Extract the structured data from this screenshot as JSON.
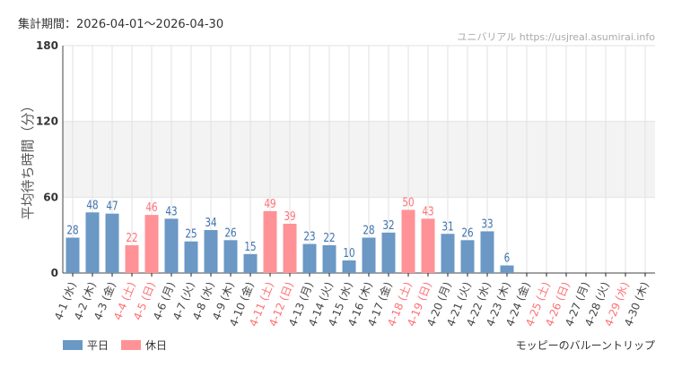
{
  "header": {
    "period": "集計期間：2026-04-01〜2026-04-30",
    "site": "ユニバリアル  https://usjreal.asumirai.info"
  },
  "footer": {
    "attraction": "モッピーのバルーントリップ"
  },
  "colors": {
    "weekday": "#6b98c5",
    "holiday": "#ff9296",
    "weekday_text": "#3d72ad",
    "holiday_text": "#ff6f75",
    "band": "#f3f3f3"
  },
  "chart_data": {
    "type": "bar",
    "ylabel": "平均待ち時間（分）",
    "ylim": [
      0,
      180
    ],
    "yticks": [
      0,
      60,
      120,
      180
    ],
    "grid": true,
    "legend": {
      "placement": "bottom-left",
      "entries": [
        {
          "name": "平日",
          "color": "#6b98c5"
        },
        {
          "name": "休日",
          "color": "#ff9296"
        }
      ]
    },
    "categories": [
      "4-1 (水)",
      "4-2 (木)",
      "4-3 (金)",
      "4-4 (土)",
      "4-5 (日)",
      "4-6 (月)",
      "4-7 (火)",
      "4-8 (水)",
      "4-9 (木)",
      "4-10 (金)",
      "4-11 (土)",
      "4-12 (日)",
      "4-13 (月)",
      "4-14 (火)",
      "4-15 (水)",
      "4-16 (木)",
      "4-17 (金)",
      "4-18 (土)",
      "4-19 (日)",
      "4-20 (月)",
      "4-21 (火)",
      "4-22 (水)",
      "4-23 (木)",
      "4-24 (金)",
      "4-25 (土)",
      "4-26 (日)",
      "4-27 (月)",
      "4-28 (火)",
      "4-29 (水)",
      "4-30 (木)"
    ],
    "holiday": [
      false,
      false,
      false,
      true,
      true,
      false,
      false,
      false,
      false,
      false,
      true,
      true,
      false,
      false,
      false,
      false,
      false,
      true,
      true,
      false,
      false,
      false,
      false,
      false,
      true,
      true,
      false,
      false,
      true,
      false
    ],
    "values": [
      28,
      48,
      47,
      22,
      46,
      43,
      25,
      34,
      26,
      15,
      49,
      39,
      23,
      22,
      10,
      28,
      32,
      50,
      43,
      31,
      26,
      33,
      6,
      null,
      null,
      null,
      null,
      null,
      null,
      null
    ]
  }
}
